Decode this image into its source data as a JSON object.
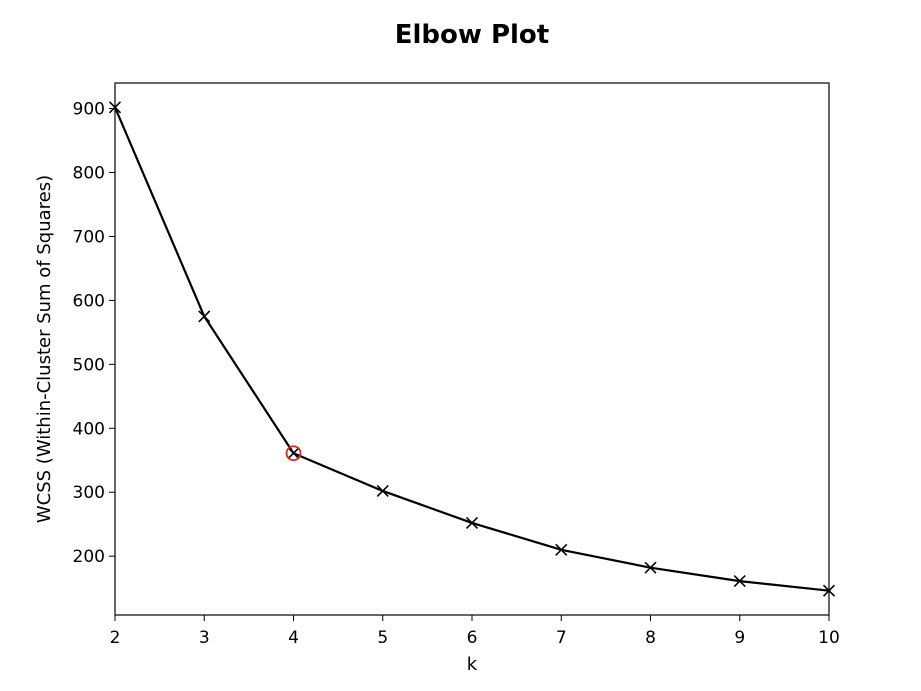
{
  "chart_data": {
    "type": "line",
    "title": "Elbow Plot",
    "xlabel": "k",
    "ylabel": "WCSS (Within-Cluster Sum of Squares)",
    "x": [
      2,
      3,
      4,
      5,
      6,
      7,
      8,
      9,
      10
    ],
    "series": [
      {
        "values": [
          902,
          575,
          361,
          302,
          252,
          210,
          182,
          161,
          146
        ],
        "color": "#000000",
        "marker": "x"
      }
    ],
    "highlight": {
      "x": 4,
      "y": 361,
      "marker": "circle",
      "color": "#d62728"
    },
    "xlim": [
      2,
      10
    ],
    "ylim": [
      108,
      940
    ],
    "xticks": [
      2,
      3,
      4,
      5,
      6,
      7,
      8,
      9,
      10
    ],
    "yticks": [
      200,
      300,
      400,
      500,
      600,
      700,
      800,
      900
    ],
    "grid": false,
    "legend": null
  }
}
